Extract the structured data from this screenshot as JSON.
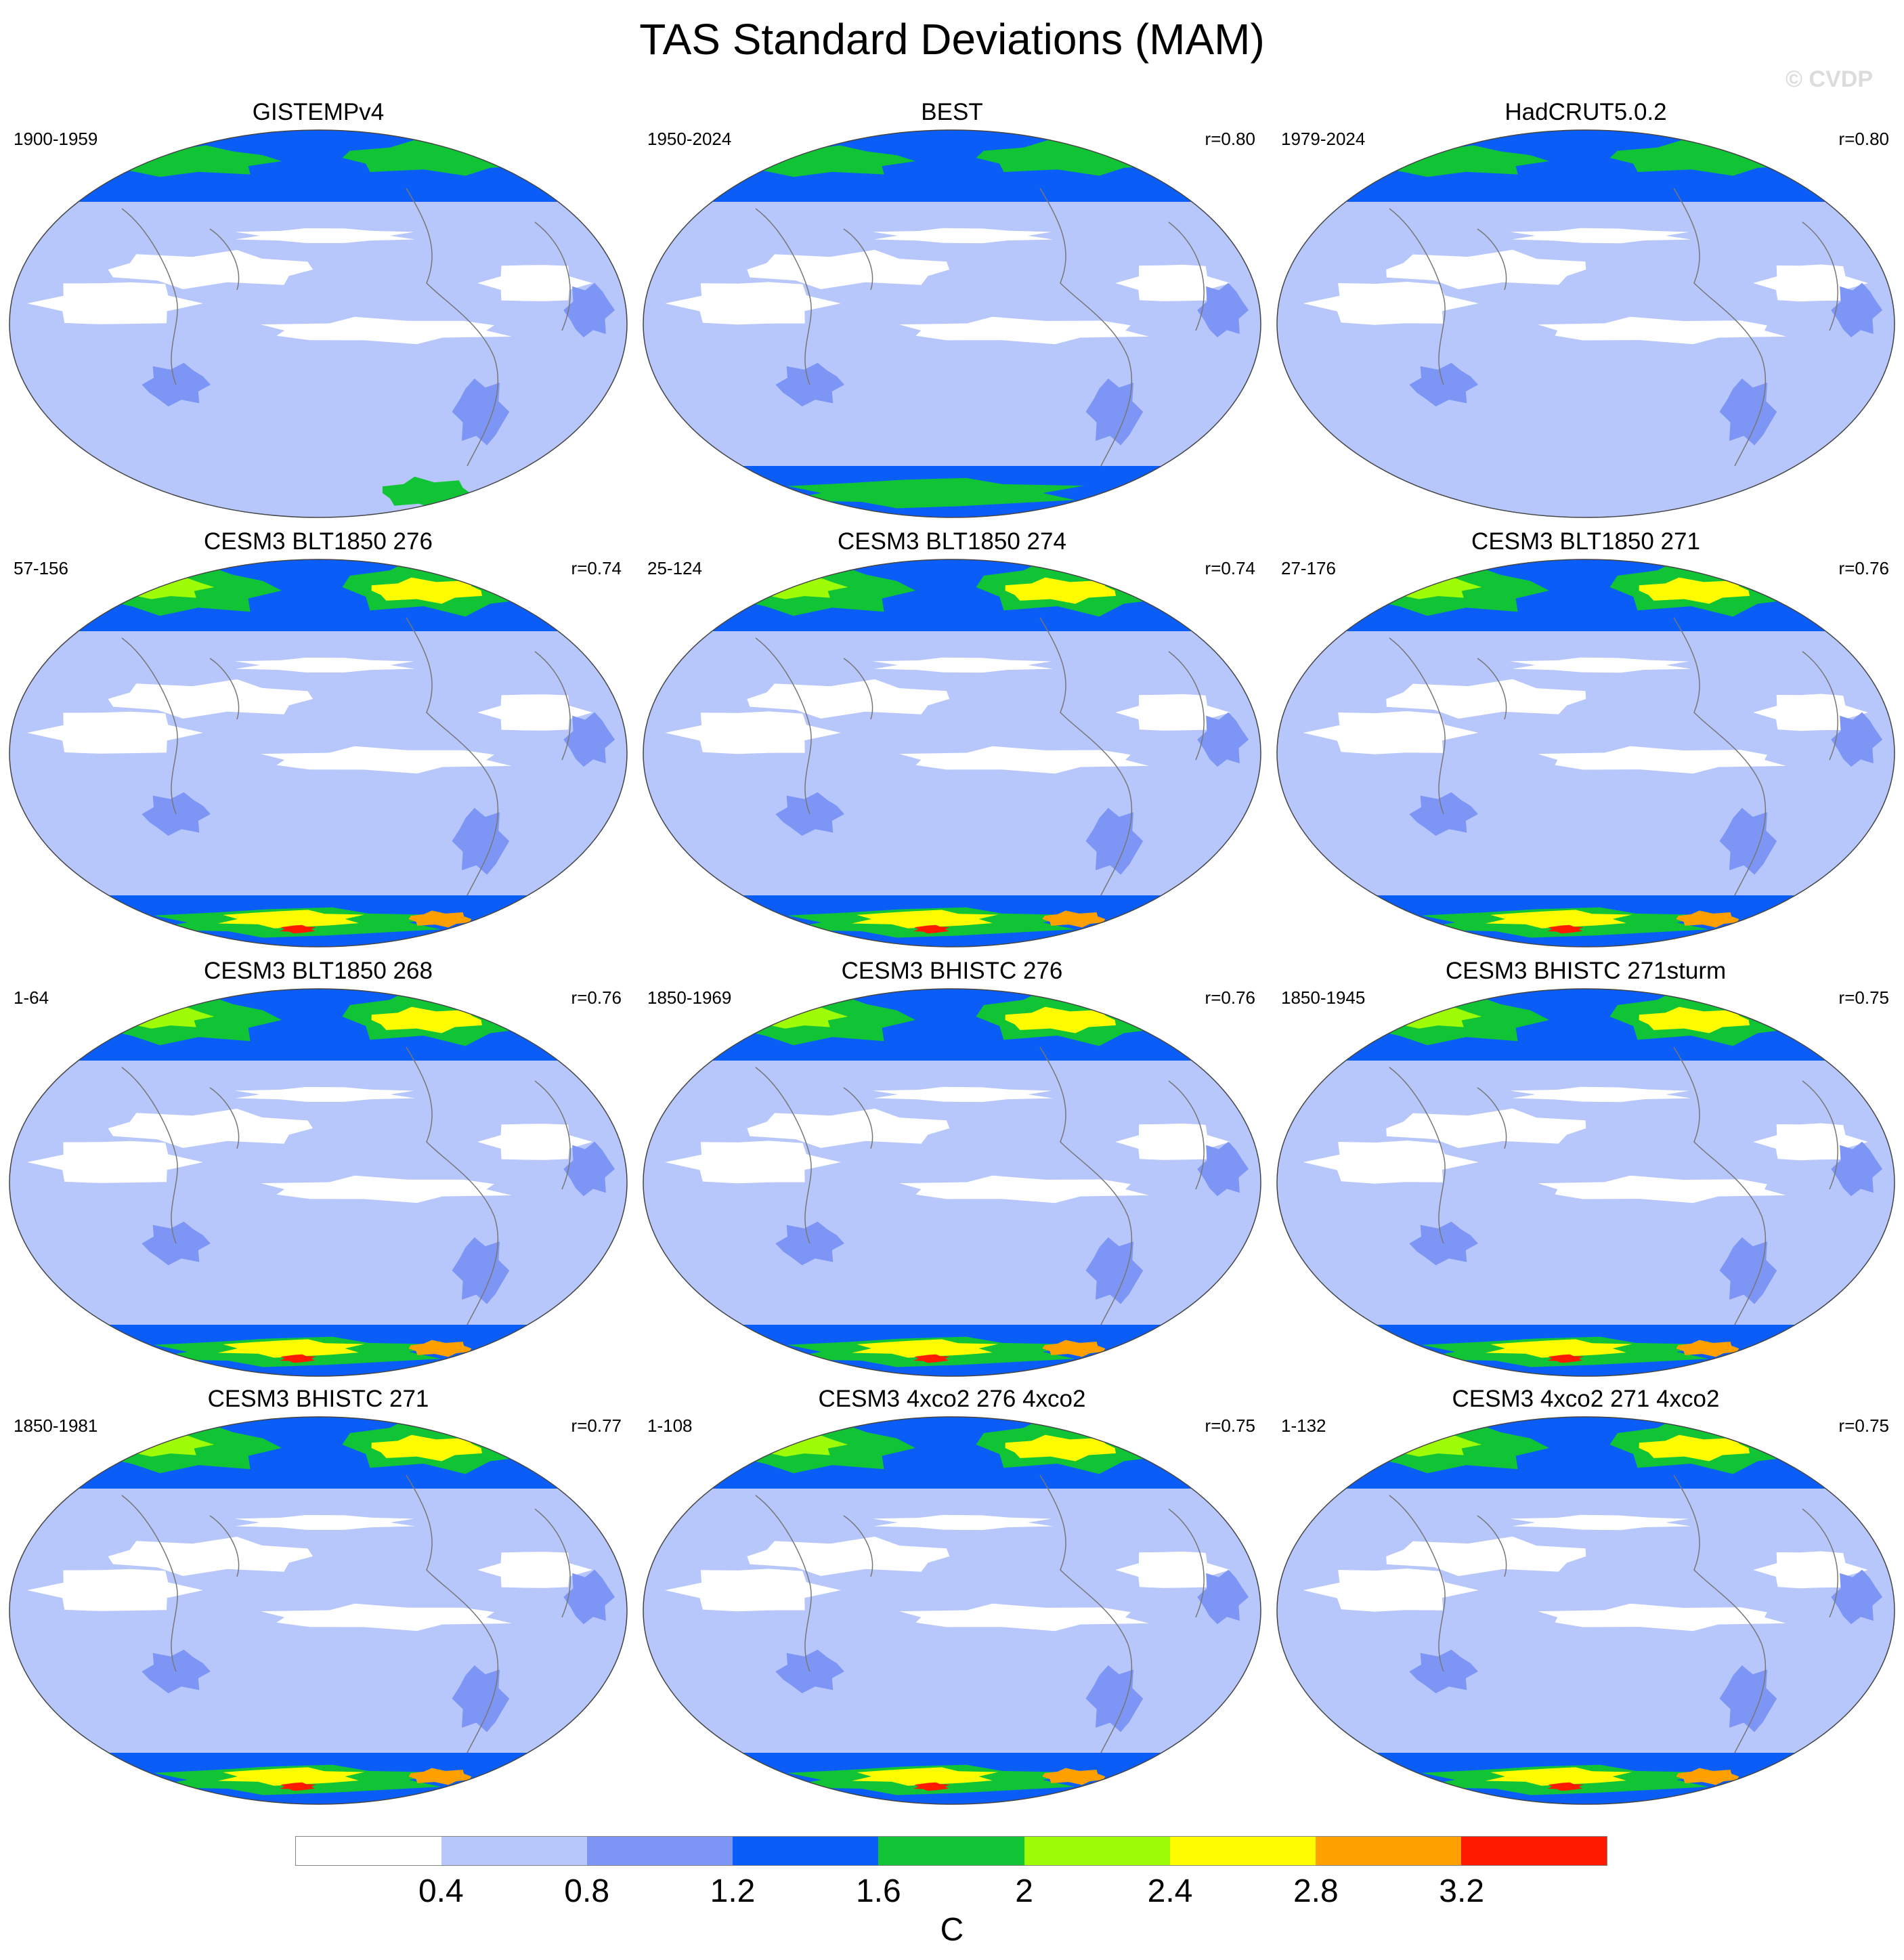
{
  "title": "TAS Standard Deviations (MAM)",
  "watermark": "© CVDP",
  "units": "C",
  "legend": {
    "labels": [
      "0.4",
      "0.8",
      "1.2",
      "1.6",
      "2",
      "2.4",
      "2.8",
      "3.2"
    ],
    "colors": [
      "#ffffff",
      "#b7c6fb",
      "#7d96f5",
      "#0b5df8",
      "#10c436",
      "#9efc07",
      "#fffc00",
      "#ffa000",
      "#ff1a00"
    ]
  },
  "panels": [
    {
      "title": "GISTEMPv4",
      "period": "1900-1959",
      "r": ""
    },
    {
      "title": "BEST",
      "period": "1950-2024",
      "r": "r=0.80"
    },
    {
      "title": "HadCRUT5.0.2",
      "period": "1979-2024",
      "r": "r=0.80"
    },
    {
      "title": "CESM3 BLT1850 276",
      "period": "57-156",
      "r": "r=0.74"
    },
    {
      "title": "CESM3 BLT1850 274",
      "period": "25-124",
      "r": "r=0.74"
    },
    {
      "title": "CESM3 BLT1850 271",
      "period": "27-176",
      "r": "r=0.76"
    },
    {
      "title": "CESM3 BLT1850 268",
      "period": "1-64",
      "r": "r=0.76"
    },
    {
      "title": "CESM3 BHISTC 276",
      "period": "1850-1969",
      "r": "r=0.76"
    },
    {
      "title": "CESM3 BHISTC 271sturm",
      "period": "1850-1945",
      "r": "r=0.75"
    },
    {
      "title": "CESM3 BHISTC 271",
      "period": "1850-1981",
      "r": "r=0.77"
    },
    {
      "title": "CESM3 4xco2 276 4xco2",
      "period": "1-108",
      "r": "r=0.75"
    },
    {
      "title": "CESM3 4xco2 271 4xco2",
      "period": "1-132",
      "r": "r=0.75"
    }
  ]
}
